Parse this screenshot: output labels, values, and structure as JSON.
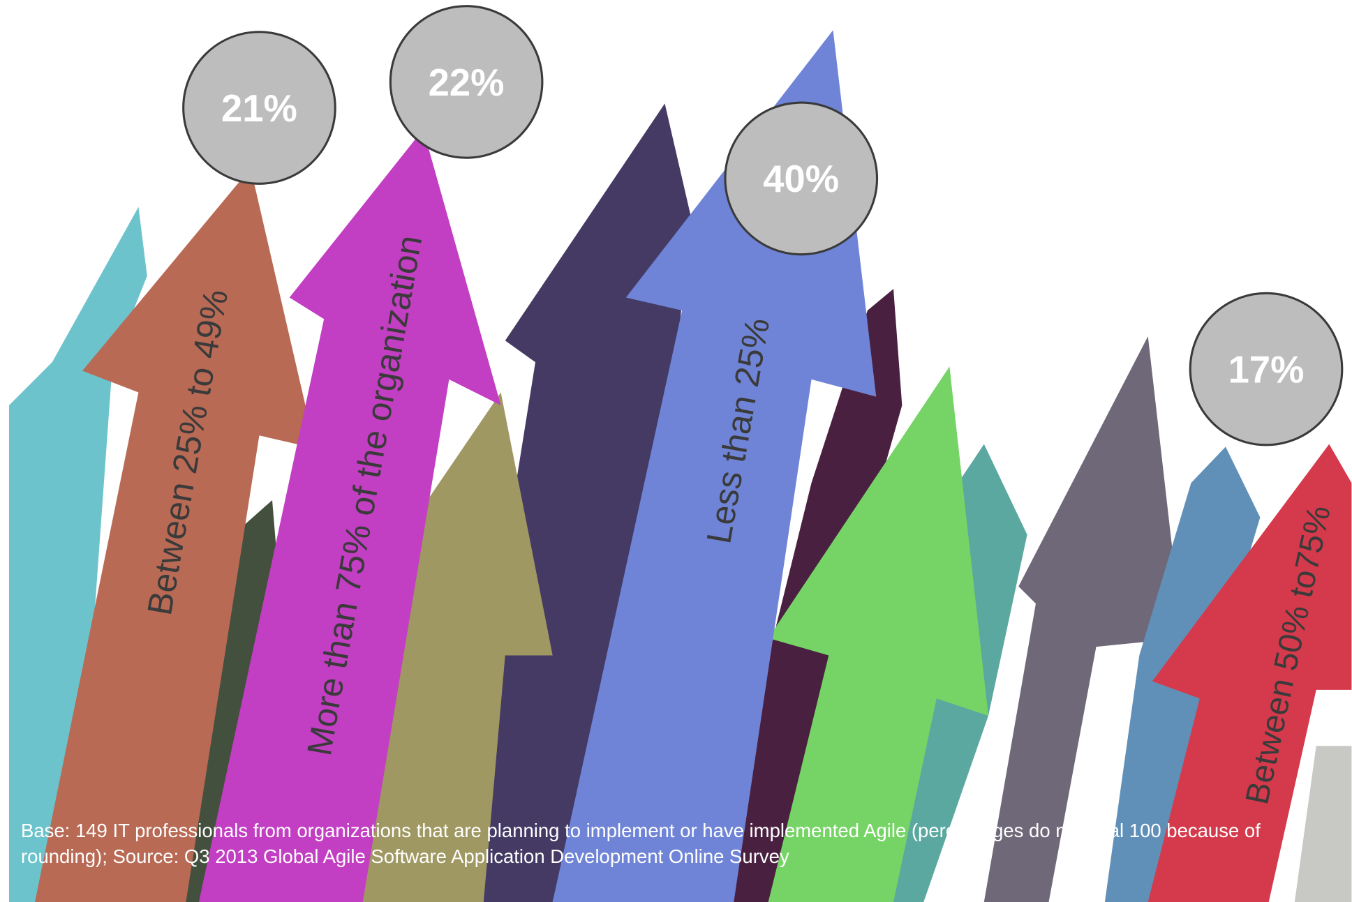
{
  "chart_data": {
    "type": "arrows",
    "categories": [
      "Between 25% to 49%",
      "More than 75% of the organization",
      "Less than 25%",
      "Between 50% to75%"
    ],
    "values": [
      21,
      22,
      40,
      17
    ],
    "value_labels": [
      "21%",
      "22%",
      "40%",
      "17%"
    ],
    "colors": [
      "#b86a55",
      "#c23ec2",
      "#6f84d6",
      "#d43a4b"
    ],
    "footnote": "Base: 149 IT professionals from organizations that are planning to implement or have implemented Agile (percentages do not total 100 because of rounding); Source: Q3 2013 Global Agile Software Application Development Online Survey"
  }
}
